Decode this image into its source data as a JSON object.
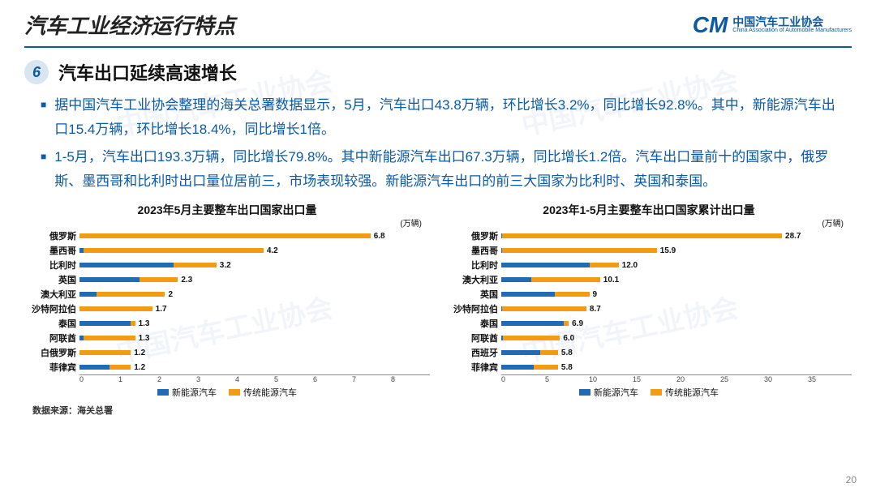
{
  "header": {
    "title": "汽车工业经济运行特点",
    "logo_mark": "CM",
    "logo_cn": "中国汽车工业协会",
    "logo_en": "China Association of Automobile Manufacturers"
  },
  "section": {
    "number": "6",
    "title": "汽车出口延续高速增长"
  },
  "bullets": [
    "据中国汽车工业协会整理的海关总署数据显示，5月，汽车出口43.8万辆，环比增长3.2%，同比增长92.8%。其中，新能源汽车出口15.4万辆，环比增长18.4%，同比增长1倍。",
    "1-5月，汽车出口193.3万辆，同比增长79.8%。其中新能源汽车出口67.3万辆，同比增长1.2倍。汽车出口量前十的国家中，俄罗斯、墨西哥和比利时出口量位居前三，市场表现较强。新能源汽车出口的前三大国家为比利时、英国和泰国。"
  ],
  "colors": {
    "orange": "#f39c12",
    "blue": "#1f6bb5",
    "accent": "#0b5aa5"
  },
  "chart_left": {
    "title": "2023年5月主要整车出口国家出口量",
    "unit": "(万辆)",
    "max": 8,
    "ticks": [
      "0",
      "1",
      "2",
      "3",
      "4",
      "5",
      "6",
      "7",
      "8"
    ],
    "rows": [
      {
        "label": "俄罗斯",
        "orange": 6.8,
        "blue": 0.0,
        "value": "6.8"
      },
      {
        "label": "墨西哥",
        "orange": 4.2,
        "blue": 0.1,
        "value": "4.2"
      },
      {
        "label": "比利时",
        "orange": 1.0,
        "blue": 2.2,
        "value": "3.2"
      },
      {
        "label": "英国",
        "orange": 0.9,
        "blue": 1.4,
        "value": "2.3"
      },
      {
        "label": "澳大利亚",
        "orange": 1.6,
        "blue": 0.4,
        "value": "2"
      },
      {
        "label": "沙特阿拉伯",
        "orange": 1.7,
        "blue": 0.0,
        "value": "1.7"
      },
      {
        "label": "泰国",
        "orange": 0.1,
        "blue": 1.2,
        "value": "1.3"
      },
      {
        "label": "阿联酋",
        "orange": 1.2,
        "blue": 0.1,
        "value": "1.3"
      },
      {
        "label": "白俄罗斯",
        "orange": 1.2,
        "blue": 0.0,
        "value": "1.2"
      },
      {
        "label": "菲律宾",
        "orange": 0.5,
        "blue": 0.7,
        "value": "1.2"
      }
    ]
  },
  "chart_right": {
    "title": "2023年1-5月主要整车出口国家累计出口量",
    "unit": "(万辆)",
    "max": 35,
    "ticks": [
      "0",
      "5",
      "10",
      "15",
      "20",
      "25",
      "30",
      "35"
    ],
    "rows": [
      {
        "label": "俄罗斯",
        "orange": 28.6,
        "blue": 0.1,
        "value": "28.7"
      },
      {
        "label": "墨西哥",
        "orange": 15.8,
        "blue": 0.1,
        "value": "15.9"
      },
      {
        "label": "比利时",
        "orange": 3.0,
        "blue": 9.0,
        "value": "12.0"
      },
      {
        "label": "澳大利亚",
        "orange": 7.0,
        "blue": 3.1,
        "value": "10.1"
      },
      {
        "label": "英国",
        "orange": 3.5,
        "blue": 5.5,
        "value": "9"
      },
      {
        "label": "沙特阿拉伯",
        "orange": 8.6,
        "blue": 0.1,
        "value": "8.7"
      },
      {
        "label": "泰国",
        "orange": 0.5,
        "blue": 6.4,
        "value": "6.9"
      },
      {
        "label": "阿联酋",
        "orange": 5.8,
        "blue": 0.2,
        "value": "6.0"
      },
      {
        "label": "西班牙",
        "orange": 1.8,
        "blue": 4.0,
        "value": "5.8"
      },
      {
        "label": "菲律宾",
        "orange": 2.5,
        "blue": 3.3,
        "value": "5.8"
      }
    ]
  },
  "legend": {
    "nev": "新能源汽车",
    "ice": "传统能源汽车"
  },
  "source": "数据来源：海关总署",
  "page": "20",
  "watermark": "中国汽车工业协会"
}
